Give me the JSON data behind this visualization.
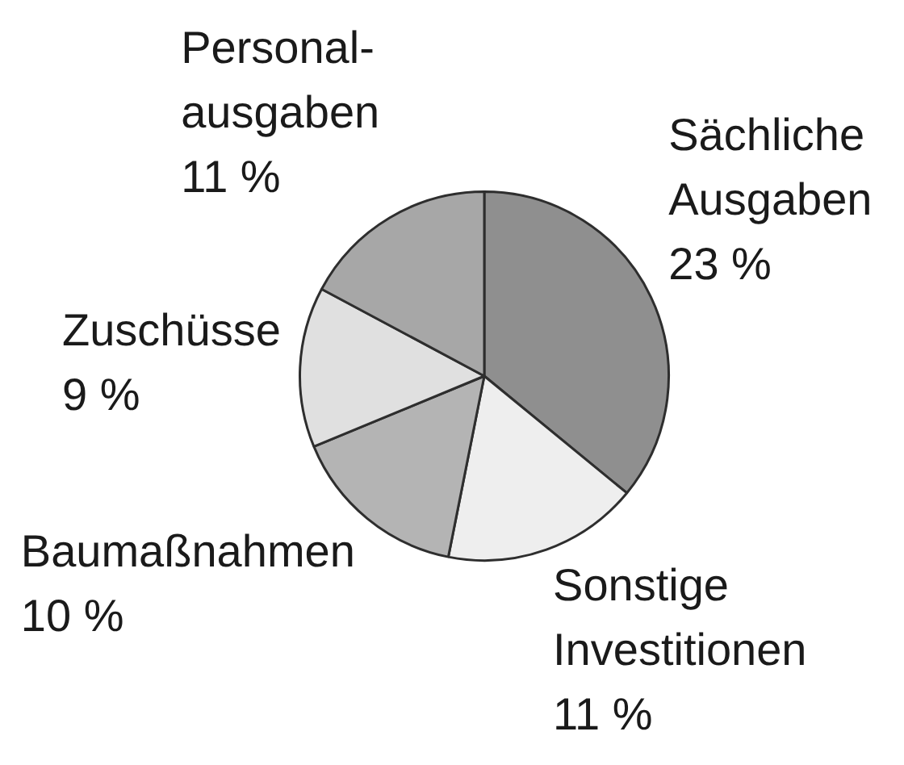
{
  "chart_data": {
    "type": "pie",
    "categories": [
      "Sächliche\nAusgaben",
      "Sonstige\nInvestitionen",
      "Baumaßnahmen",
      "Zuschüsse",
      "Personal-\nausgaben"
    ],
    "values": [
      23,
      11,
      10,
      9,
      11
    ],
    "value_labels": [
      "23 %",
      "11 %",
      "10 %",
      "9 %",
      "11 %"
    ],
    "colors": [
      "#8f8f8f",
      "#eeeeee",
      "#b4b4b4",
      "#e0e0e0",
      "#a7a7a7"
    ]
  }
}
